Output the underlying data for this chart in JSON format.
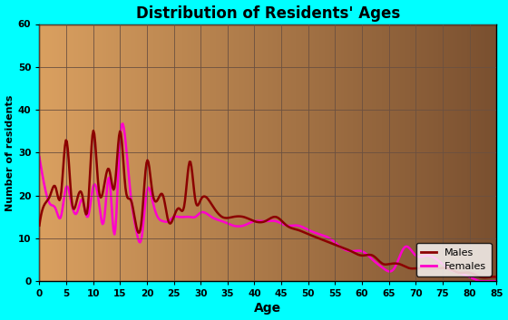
{
  "title": "Distribution of Residents' Ages",
  "xlabel": "Age",
  "ylabel": "Number of residents",
  "xlim": [
    0,
    85
  ],
  "ylim": [
    0,
    60
  ],
  "xticks": [
    0,
    5,
    10,
    15,
    20,
    25,
    30,
    35,
    40,
    45,
    50,
    55,
    60,
    65,
    70,
    75,
    80,
    85
  ],
  "yticks": [
    0,
    10,
    20,
    30,
    40,
    50,
    60
  ],
  "bg_outer": "#00ffff",
  "bg_inner_left": "#daa060",
  "bg_inner_right": "#7a5030",
  "grid_color": "#6b5040",
  "male_color": "#8b0000",
  "female_color": "#ff00cc",
  "legend_bg": "#ffffff",
  "males_x": [
    0,
    1,
    2,
    3,
    4,
    5,
    6,
    7,
    8,
    9,
    10,
    11,
    12,
    13,
    14,
    15,
    16,
    17,
    18,
    19,
    20,
    21,
    22,
    23,
    24,
    25,
    26,
    27,
    28,
    29,
    30,
    32,
    34,
    36,
    38,
    40,
    42,
    44,
    46,
    48,
    50,
    52,
    54,
    56,
    58,
    60,
    62,
    64,
    65,
    67,
    69,
    70,
    72,
    74,
    76,
    78,
    80,
    82,
    84,
    85
  ],
  "males_y": [
    13,
    18,
    20,
    22,
    20,
    33,
    19,
    19,
    20,
    17,
    35,
    22,
    22,
    26,
    22,
    35,
    22,
    19,
    13,
    14,
    28,
    21,
    19,
    20,
    14,
    15,
    17,
    18,
    28,
    19,
    19,
    18,
    15,
    15,
    15,
    14,
    14,
    15,
    13,
    12,
    11,
    10,
    9,
    8,
    7,
    6,
    6,
    4,
    4,
    4,
    3,
    3,
    3,
    3,
    3,
    2,
    2,
    1,
    1,
    1
  ],
  "females_x": [
    0,
    1,
    2,
    3,
    4,
    5,
    6,
    7,
    8,
    9,
    10,
    11,
    12,
    13,
    14,
    15,
    16,
    17,
    18,
    19,
    20,
    21,
    22,
    23,
    24,
    25,
    26,
    27,
    28,
    29,
    30,
    32,
    34,
    36,
    38,
    40,
    42,
    44,
    46,
    48,
    50,
    52,
    54,
    56,
    58,
    60,
    62,
    64,
    66,
    68,
    70,
    72,
    74,
    76,
    78,
    80,
    82,
    84,
    85
  ],
  "females_y": [
    29,
    22,
    18,
    17,
    15,
    22,
    18,
    16,
    19,
    15,
    22,
    19,
    14,
    24,
    11,
    33,
    33,
    20,
    12,
    10,
    21,
    19,
    15,
    14,
    14,
    15,
    15,
    15,
    15,
    15,
    16,
    15,
    14,
    13,
    13,
    14,
    14,
    14,
    13,
    13,
    12,
    11,
    10,
    8,
    7,
    7,
    5,
    3,
    3,
    8,
    6,
    6,
    5,
    3,
    2,
    1,
    0,
    0,
    0
  ]
}
